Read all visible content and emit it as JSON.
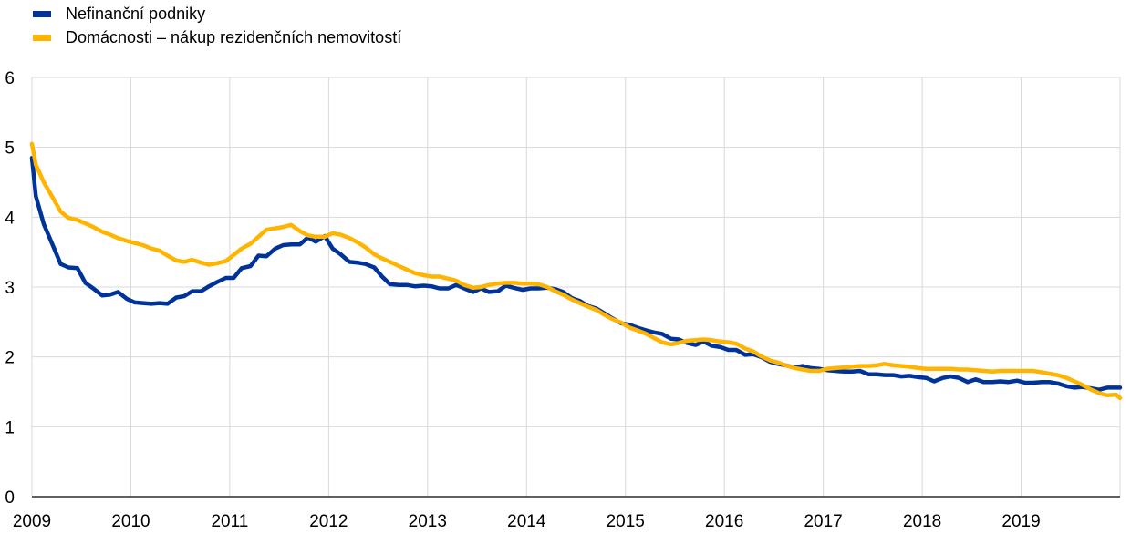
{
  "chart_data": {
    "type": "line",
    "title": "",
    "xlabel": "",
    "ylabel": "",
    "xlim": [
      2009,
      2020
    ],
    "ylim": [
      0,
      6
    ],
    "y_ticks": [
      "0",
      "1",
      "2",
      "3",
      "4",
      "5",
      "6"
    ],
    "x_ticks": [
      "2009",
      "2010",
      "2011",
      "2012",
      "2013",
      "2014",
      "2015",
      "2016",
      "2017",
      "2018",
      "2019"
    ],
    "grid": "vertical-and-horizontal",
    "legend_position": "top-left",
    "series": [
      {
        "name": "Nefinanční podniky",
        "color": "#003399",
        "points": [
          [
            2009.0,
            4.85
          ],
          [
            2009.04,
            4.3
          ],
          [
            2009.12,
            3.9
          ],
          [
            2009.21,
            3.6
          ],
          [
            2009.29,
            3.33
          ],
          [
            2009.37,
            3.28
          ],
          [
            2009.46,
            3.27
          ],
          [
            2009.54,
            3.06
          ],
          [
            2009.62,
            2.98
          ],
          [
            2009.71,
            2.88
          ],
          [
            2009.79,
            2.89
          ],
          [
            2009.87,
            2.93
          ],
          [
            2009.96,
            2.83
          ],
          [
            2010.04,
            2.78
          ],
          [
            2010.12,
            2.77
          ],
          [
            2010.21,
            2.76
          ],
          [
            2010.29,
            2.77
          ],
          [
            2010.37,
            2.76
          ],
          [
            2010.46,
            2.85
          ],
          [
            2010.54,
            2.87
          ],
          [
            2010.62,
            2.94
          ],
          [
            2010.71,
            2.94
          ],
          [
            2010.79,
            3.01
          ],
          [
            2010.87,
            3.07
          ],
          [
            2010.96,
            3.13
          ],
          [
            2011.04,
            3.13
          ],
          [
            2011.12,
            3.27
          ],
          [
            2011.21,
            3.3
          ],
          [
            2011.29,
            3.45
          ],
          [
            2011.37,
            3.44
          ],
          [
            2011.46,
            3.55
          ],
          [
            2011.54,
            3.6
          ],
          [
            2011.62,
            3.61
          ],
          [
            2011.71,
            3.61
          ],
          [
            2011.79,
            3.71
          ],
          [
            2011.87,
            3.65
          ],
          [
            2011.96,
            3.73
          ],
          [
            2012.04,
            3.55
          ],
          [
            2012.12,
            3.47
          ],
          [
            2012.21,
            3.36
          ],
          [
            2012.29,
            3.35
          ],
          [
            2012.37,
            3.33
          ],
          [
            2012.46,
            3.28
          ],
          [
            2012.54,
            3.15
          ],
          [
            2012.62,
            3.04
          ],
          [
            2012.71,
            3.03
          ],
          [
            2012.79,
            3.03
          ],
          [
            2012.87,
            3.01
          ],
          [
            2012.96,
            3.02
          ],
          [
            2013.04,
            3.01
          ],
          [
            2013.12,
            2.98
          ],
          [
            2013.21,
            2.98
          ],
          [
            2013.29,
            3.03
          ],
          [
            2013.37,
            2.98
          ],
          [
            2013.46,
            2.93
          ],
          [
            2013.54,
            2.98
          ],
          [
            2013.62,
            2.93
          ],
          [
            2013.71,
            2.94
          ],
          [
            2013.79,
            3.02
          ],
          [
            2013.87,
            2.99
          ],
          [
            2013.96,
            2.96
          ],
          [
            2014.04,
            2.98
          ],
          [
            2014.12,
            2.98
          ],
          [
            2014.21,
            2.99
          ],
          [
            2014.29,
            2.97
          ],
          [
            2014.37,
            2.93
          ],
          [
            2014.46,
            2.84
          ],
          [
            2014.54,
            2.8
          ],
          [
            2014.62,
            2.73
          ],
          [
            2014.71,
            2.69
          ],
          [
            2014.79,
            2.62
          ],
          [
            2014.87,
            2.55
          ],
          [
            2014.96,
            2.48
          ],
          [
            2015.04,
            2.46
          ],
          [
            2015.12,
            2.42
          ],
          [
            2015.21,
            2.38
          ],
          [
            2015.29,
            2.35
          ],
          [
            2015.37,
            2.33
          ],
          [
            2015.46,
            2.26
          ],
          [
            2015.54,
            2.25
          ],
          [
            2015.62,
            2.2
          ],
          [
            2015.71,
            2.17
          ],
          [
            2015.79,
            2.22
          ],
          [
            2015.87,
            2.16
          ],
          [
            2015.96,
            2.14
          ],
          [
            2016.04,
            2.1
          ],
          [
            2016.12,
            2.1
          ],
          [
            2016.21,
            2.03
          ],
          [
            2016.29,
            2.04
          ],
          [
            2016.37,
            2.0
          ],
          [
            2016.46,
            1.93
          ],
          [
            2016.54,
            1.9
          ],
          [
            2016.62,
            1.88
          ],
          [
            2016.71,
            1.85
          ],
          [
            2016.79,
            1.87
          ],
          [
            2016.87,
            1.84
          ],
          [
            2016.96,
            1.83
          ],
          [
            2017.04,
            1.81
          ],
          [
            2017.12,
            1.8
          ],
          [
            2017.21,
            1.79
          ],
          [
            2017.29,
            1.79
          ],
          [
            2017.37,
            1.8
          ],
          [
            2017.46,
            1.75
          ],
          [
            2017.54,
            1.75
          ],
          [
            2017.62,
            1.74
          ],
          [
            2017.71,
            1.74
          ],
          [
            2017.79,
            1.72
          ],
          [
            2017.87,
            1.73
          ],
          [
            2017.96,
            1.71
          ],
          [
            2018.04,
            1.7
          ],
          [
            2018.12,
            1.65
          ],
          [
            2018.21,
            1.7
          ],
          [
            2018.29,
            1.72
          ],
          [
            2018.37,
            1.7
          ],
          [
            2018.46,
            1.64
          ],
          [
            2018.54,
            1.68
          ],
          [
            2018.62,
            1.64
          ],
          [
            2018.71,
            1.64
          ],
          [
            2018.79,
            1.65
          ],
          [
            2018.87,
            1.64
          ],
          [
            2018.96,
            1.66
          ],
          [
            2019.04,
            1.63
          ],
          [
            2019.12,
            1.63
          ],
          [
            2019.21,
            1.64
          ],
          [
            2019.29,
            1.64
          ],
          [
            2019.37,
            1.62
          ],
          [
            2019.46,
            1.58
          ],
          [
            2019.54,
            1.56
          ],
          [
            2019.62,
            1.57
          ],
          [
            2019.71,
            1.55
          ],
          [
            2019.79,
            1.53
          ],
          [
            2019.87,
            1.56
          ],
          [
            2019.96,
            1.56
          ],
          [
            2020.0,
            1.56
          ]
        ]
      },
      {
        "name": "Domácnosti – nákup rezidenčních nemovitostí",
        "color": "#ffb400",
        "points": [
          [
            2009.0,
            5.05
          ],
          [
            2009.04,
            4.75
          ],
          [
            2009.12,
            4.5
          ],
          [
            2009.21,
            4.28
          ],
          [
            2009.29,
            4.08
          ],
          [
            2009.37,
            3.99
          ],
          [
            2009.46,
            3.96
          ],
          [
            2009.54,
            3.91
          ],
          [
            2009.62,
            3.86
          ],
          [
            2009.71,
            3.79
          ],
          [
            2009.79,
            3.75
          ],
          [
            2009.87,
            3.7
          ],
          [
            2009.96,
            3.66
          ],
          [
            2010.04,
            3.63
          ],
          [
            2010.12,
            3.6
          ],
          [
            2010.21,
            3.55
          ],
          [
            2010.29,
            3.52
          ],
          [
            2010.37,
            3.45
          ],
          [
            2010.46,
            3.38
          ],
          [
            2010.54,
            3.36
          ],
          [
            2010.62,
            3.39
          ],
          [
            2010.71,
            3.35
          ],
          [
            2010.79,
            3.32
          ],
          [
            2010.87,
            3.34
          ],
          [
            2010.96,
            3.37
          ],
          [
            2011.04,
            3.46
          ],
          [
            2011.12,
            3.55
          ],
          [
            2011.21,
            3.62
          ],
          [
            2011.29,
            3.72
          ],
          [
            2011.37,
            3.82
          ],
          [
            2011.46,
            3.84
          ],
          [
            2011.54,
            3.86
          ],
          [
            2011.62,
            3.89
          ],
          [
            2011.71,
            3.8
          ],
          [
            2011.79,
            3.74
          ],
          [
            2011.87,
            3.72
          ],
          [
            2011.96,
            3.72
          ],
          [
            2012.04,
            3.77
          ],
          [
            2012.12,
            3.75
          ],
          [
            2012.21,
            3.7
          ],
          [
            2012.29,
            3.64
          ],
          [
            2012.37,
            3.57
          ],
          [
            2012.46,
            3.47
          ],
          [
            2012.54,
            3.41
          ],
          [
            2012.62,
            3.36
          ],
          [
            2012.71,
            3.3
          ],
          [
            2012.79,
            3.25
          ],
          [
            2012.87,
            3.2
          ],
          [
            2012.96,
            3.17
          ],
          [
            2013.04,
            3.15
          ],
          [
            2013.12,
            3.15
          ],
          [
            2013.21,
            3.12
          ],
          [
            2013.29,
            3.09
          ],
          [
            2013.37,
            3.03
          ],
          [
            2013.46,
            2.99
          ],
          [
            2013.54,
            3.0
          ],
          [
            2013.62,
            3.03
          ],
          [
            2013.71,
            3.05
          ],
          [
            2013.79,
            3.06
          ],
          [
            2013.87,
            3.06
          ],
          [
            2013.96,
            3.05
          ],
          [
            2014.04,
            3.05
          ],
          [
            2014.12,
            3.04
          ],
          [
            2014.21,
            3.0
          ],
          [
            2014.29,
            2.94
          ],
          [
            2014.37,
            2.89
          ],
          [
            2014.46,
            2.82
          ],
          [
            2014.54,
            2.77
          ],
          [
            2014.62,
            2.72
          ],
          [
            2014.71,
            2.67
          ],
          [
            2014.79,
            2.6
          ],
          [
            2014.87,
            2.54
          ],
          [
            2014.96,
            2.49
          ],
          [
            2015.04,
            2.42
          ],
          [
            2015.12,
            2.38
          ],
          [
            2015.21,
            2.33
          ],
          [
            2015.29,
            2.27
          ],
          [
            2015.37,
            2.21
          ],
          [
            2015.46,
            2.18
          ],
          [
            2015.54,
            2.2
          ],
          [
            2015.62,
            2.23
          ],
          [
            2015.71,
            2.24
          ],
          [
            2015.79,
            2.25
          ],
          [
            2015.87,
            2.24
          ],
          [
            2015.96,
            2.22
          ],
          [
            2016.04,
            2.21
          ],
          [
            2016.12,
            2.19
          ],
          [
            2016.21,
            2.12
          ],
          [
            2016.29,
            2.08
          ],
          [
            2016.37,
            2.01
          ],
          [
            2016.46,
            1.95
          ],
          [
            2016.54,
            1.92
          ],
          [
            2016.62,
            1.88
          ],
          [
            2016.71,
            1.84
          ],
          [
            2016.79,
            1.82
          ],
          [
            2016.87,
            1.8
          ],
          [
            2016.96,
            1.8
          ],
          [
            2017.04,
            1.83
          ],
          [
            2017.12,
            1.84
          ],
          [
            2017.21,
            1.85
          ],
          [
            2017.29,
            1.86
          ],
          [
            2017.37,
            1.87
          ],
          [
            2017.46,
            1.87
          ],
          [
            2017.54,
            1.88
          ],
          [
            2017.62,
            1.9
          ],
          [
            2017.71,
            1.88
          ],
          [
            2017.79,
            1.87
          ],
          [
            2017.87,
            1.86
          ],
          [
            2017.96,
            1.84
          ],
          [
            2018.04,
            1.83
          ],
          [
            2018.12,
            1.83
          ],
          [
            2018.21,
            1.83
          ],
          [
            2018.29,
            1.83
          ],
          [
            2018.37,
            1.82
          ],
          [
            2018.46,
            1.82
          ],
          [
            2018.54,
            1.81
          ],
          [
            2018.62,
            1.8
          ],
          [
            2018.71,
            1.79
          ],
          [
            2018.79,
            1.8
          ],
          [
            2018.87,
            1.8
          ],
          [
            2018.96,
            1.8
          ],
          [
            2019.04,
            1.8
          ],
          [
            2019.12,
            1.8
          ],
          [
            2019.21,
            1.78
          ],
          [
            2019.29,
            1.76
          ],
          [
            2019.37,
            1.74
          ],
          [
            2019.46,
            1.7
          ],
          [
            2019.54,
            1.65
          ],
          [
            2019.62,
            1.6
          ],
          [
            2019.71,
            1.53
          ],
          [
            2019.79,
            1.48
          ],
          [
            2019.87,
            1.45
          ],
          [
            2019.96,
            1.46
          ],
          [
            2020.0,
            1.41
          ]
        ]
      }
    ]
  }
}
